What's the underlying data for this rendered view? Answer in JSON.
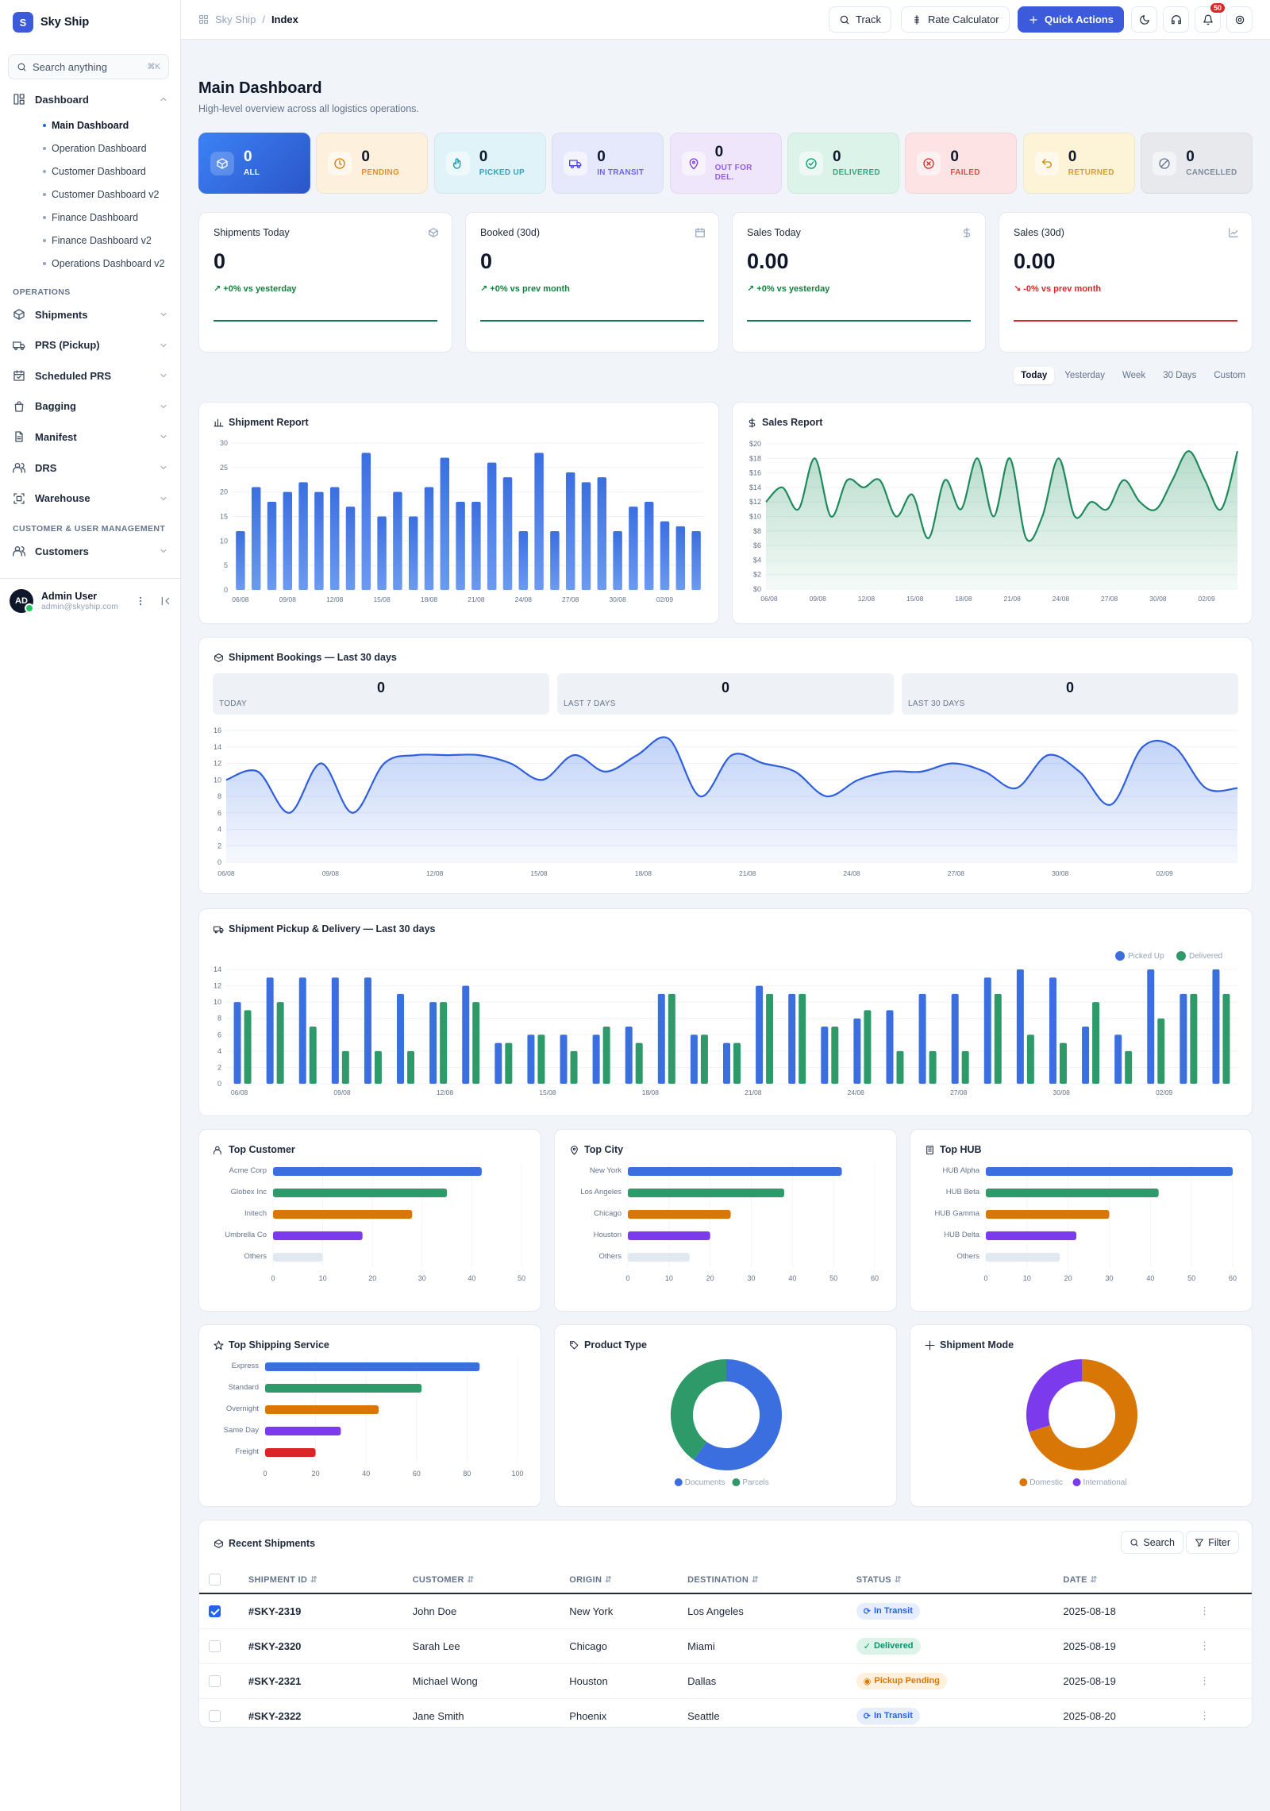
{
  "brand": {
    "logo": "S",
    "name": "Sky Ship"
  },
  "sidebar": {
    "search_placeholder": "Search anything",
    "search_kbd": "⌘K",
    "dashboard": {
      "label": "Dashboard",
      "icon": "layout-dashboard-icon",
      "subs": [
        "Main Dashboard",
        "Operation Dashboard",
        "Customer Dashboard",
        "Customer Dashboard v2",
        "Finance Dashboard",
        "Finance Dashboard v2",
        "Operations Dashboard v2"
      ]
    },
    "sections": [
      {
        "title": "OPERATIONS",
        "items": [
          {
            "label": "Shipments",
            "icon": "box-icon"
          },
          {
            "label": "PRS (Pickup)",
            "icon": "truck-icon"
          },
          {
            "label": "Scheduled PRS",
            "icon": "calendar-check-icon"
          },
          {
            "label": "Bagging",
            "icon": "shopping-bag-icon"
          },
          {
            "label": "Manifest",
            "icon": "file-text-icon"
          },
          {
            "label": "DRS",
            "icon": "users-icon"
          },
          {
            "label": "Warehouse",
            "icon": "scan-icon"
          }
        ]
      },
      {
        "title": "CUSTOMER & USER MANAGEMENT",
        "items": [
          {
            "label": "Customers",
            "icon": "users-icon"
          }
        ]
      }
    ],
    "user": {
      "initials": "AD",
      "name": "Admin User",
      "email": "admin@skyship.com"
    }
  },
  "topbar": {
    "breadcrumb": [
      "Sky Ship",
      "Index"
    ],
    "track": "Track",
    "rate": "Rate Calculator",
    "quick": "Quick Actions",
    "notif_count": "50"
  },
  "header": {
    "title": "Main Dashboard",
    "subtitle": "High-level overview across all logistics operations."
  },
  "statuses": [
    {
      "label": "ALL",
      "value": "0",
      "icon": "box-icon",
      "bg": "#3b6fe0",
      "fg": "#ffffff"
    },
    {
      "label": "PENDING",
      "value": "0",
      "icon": "clock-icon",
      "bg": "#fdf0dc",
      "fg": "#d97706"
    },
    {
      "label": "PICKED UP",
      "value": "0",
      "icon": "hand-icon",
      "bg": "#dff3f8",
      "fg": "#0891b2"
    },
    {
      "label": "IN TRANSIT",
      "value": "0",
      "icon": "truck-icon",
      "bg": "#e6e9fb",
      "fg": "#4f46e5"
    },
    {
      "label": "OUT FOR DEL.",
      "value": "0",
      "icon": "map-pin-icon",
      "bg": "#efe6fb",
      "fg": "#7c3aed"
    },
    {
      "label": "DELIVERED",
      "value": "0",
      "icon": "check-circle-icon",
      "bg": "#dcf3ea",
      "fg": "#059669"
    },
    {
      "label": "FAILED",
      "value": "0",
      "icon": "x-circle-icon",
      "bg": "#fde3e3",
      "fg": "#dc2626"
    },
    {
      "label": "RETURNED",
      "value": "0",
      "icon": "undo-icon",
      "bg": "#fdf3d6",
      "fg": "#ca8a04"
    },
    {
      "label": "CANCELLED",
      "value": "0",
      "icon": "ban-icon",
      "bg": "#e7e9ec",
      "fg": "#64748b"
    }
  ],
  "metrics": [
    {
      "title": "Shipments Today",
      "value": "0",
      "delta": "↗ +0% vs yesterday",
      "up": true,
      "icon": "box-icon"
    },
    {
      "title": "Booked (30d)",
      "value": "0",
      "delta": "↗ +0% vs prev month",
      "up": true,
      "icon": "calendar-icon"
    },
    {
      "title": "Sales Today",
      "value": "0.00",
      "delta": "↗ +0% vs yesterday",
      "up": true,
      "icon": "dollar-icon"
    },
    {
      "title": "Sales (30d)",
      "value": "0.00",
      "delta": "↘ -0% vs prev month",
      "up": false,
      "icon": "trending-icon"
    }
  ],
  "ranges": [
    "Today",
    "Yesterday",
    "Week",
    "30 Days",
    "Custom"
  ],
  "colors": {
    "blue": "#3b6fe0",
    "green": "#2e9a6a",
    "orange": "#d97706",
    "purple": "#7c3aed",
    "red": "#dc2626",
    "grey": "#e2e8f0"
  },
  "chart_data": [
    {
      "id": "shipment-report",
      "type": "bar",
      "title": "Shipment Report",
      "ylim": [
        0,
        30
      ],
      "yticks": [
        0,
        5,
        10,
        15,
        20,
        25,
        30
      ],
      "xticklabels": [
        "06/08",
        "09/08",
        "12/08",
        "15/08",
        "18/08",
        "21/08",
        "24/08",
        "27/08",
        "30/08",
        "02/09"
      ],
      "values": [
        12,
        21,
        18,
        20,
        22,
        20,
        21,
        17,
        28,
        15,
        20,
        15,
        21,
        27,
        18,
        18,
        26,
        23,
        12,
        28,
        12,
        24,
        22,
        23,
        12,
        17,
        18,
        14,
        13,
        12
      ]
    },
    {
      "id": "sales-report",
      "type": "area",
      "title": "Sales Report",
      "ylim": [
        0,
        20
      ],
      "yticks": [
        "$0",
        "$2",
        "$4",
        "$6",
        "$8",
        "$10",
        "$12",
        "$14",
        "$16",
        "$18",
        "$20"
      ],
      "xticklabels": [
        "06/08",
        "09/08",
        "12/08",
        "15/08",
        "18/08",
        "21/08",
        "24/08",
        "27/08",
        "30/08",
        "02/09"
      ],
      "values": [
        12,
        14,
        11,
        18,
        10,
        15,
        14,
        15,
        10,
        13,
        7,
        15,
        11,
        18,
        10,
        18,
        7,
        10,
        18,
        10,
        12,
        11,
        15,
        12,
        11,
        15,
        19,
        15,
        11,
        19
      ]
    },
    {
      "id": "bookings",
      "type": "area",
      "title": "Shipment Bookings — Last 30 days",
      "ylim": [
        0,
        16
      ],
      "yticks": [
        0,
        2,
        4,
        6,
        8,
        10,
        12,
        14,
        16
      ],
      "xticklabels": [
        "06/08",
        "09/08",
        "12/08",
        "15/08",
        "18/08",
        "21/08",
        "24/08",
        "27/08",
        "30/08",
        "02/09"
      ],
      "values": [
        10,
        11,
        6,
        12,
        6,
        12,
        13,
        13,
        13,
        12,
        10,
        13,
        11,
        13,
        15,
        8,
        13,
        12,
        11,
        8,
        10,
        11,
        11,
        12,
        11,
        9,
        13,
        11,
        7,
        14,
        14,
        9,
        9
      ],
      "kpis": [
        {
          "label": "TODAY",
          "value": "0"
        },
        {
          "label": "LAST 7 DAYS",
          "value": "0"
        },
        {
          "label": "LAST 30 DAYS",
          "value": "0"
        }
      ]
    },
    {
      "id": "pickup-delivery",
      "type": "bar",
      "title": "Shipment Pickup & Delivery — Last 30 days",
      "ylim": [
        0,
        14
      ],
      "yticks": [
        0,
        2,
        4,
        6,
        8,
        10,
        12,
        14
      ],
      "xticklabels": [
        "06/08",
        "09/08",
        "12/08",
        "15/08",
        "18/08",
        "21/08",
        "24/08",
        "27/08",
        "30/08",
        "02/09"
      ],
      "series": [
        {
          "name": "Picked Up",
          "values": [
            10,
            13,
            13,
            13,
            13,
            11,
            10,
            12,
            5,
            6,
            6,
            6,
            7,
            11,
            6,
            5,
            12,
            11,
            7,
            8,
            9,
            11,
            11,
            13,
            14,
            13,
            7,
            6,
            14,
            11,
            14
          ]
        },
        {
          "name": "Delivered",
          "values": [
            9,
            10,
            7,
            4,
            4,
            4,
            10,
            10,
            5,
            6,
            4,
            7,
            5,
            11,
            6,
            5,
            11,
            11,
            7,
            9,
            4,
            4,
            4,
            11,
            6,
            5,
            10,
            4,
            8,
            11,
            11
          ]
        }
      ]
    },
    {
      "id": "top-customer",
      "type": "hbar",
      "title": "Top Customer",
      "categories": [
        "Acme Corp",
        "Globex Inc",
        "Initech",
        "Umbrella Co",
        "Others"
      ],
      "values": [
        42,
        35,
        28,
        18,
        10
      ],
      "xlim": [
        0,
        50
      ],
      "xticks": [
        0,
        10,
        20,
        30,
        40,
        50
      ]
    },
    {
      "id": "top-city",
      "type": "hbar",
      "title": "Top City",
      "categories": [
        "New York",
        "Los Angeles",
        "Chicago",
        "Houston",
        "Others"
      ],
      "values": [
        52,
        38,
        25,
        20,
        15
      ],
      "xlim": [
        0,
        60
      ],
      "xticks": [
        0,
        10,
        20,
        30,
        40,
        50,
        60
      ]
    },
    {
      "id": "top-hub",
      "type": "hbar",
      "title": "Top HUB",
      "categories": [
        "HUB Alpha",
        "HUB Beta",
        "HUB Gamma",
        "HUB Delta",
        "Others"
      ],
      "values": [
        60,
        42,
        30,
        22,
        18
      ],
      "xlim": [
        0,
        60
      ],
      "xticks": [
        0,
        10,
        20,
        30,
        40,
        50,
        60
      ]
    },
    {
      "id": "top-service",
      "type": "hbar",
      "title": "Top Shipping Service",
      "categories": [
        "Express",
        "Standard",
        "Overnight",
        "Same Day",
        "Freight"
      ],
      "values": [
        85,
        62,
        45,
        30,
        20
      ],
      "xlim": [
        0,
        100
      ],
      "xticks": [
        0,
        20,
        40,
        60,
        80,
        100
      ]
    },
    {
      "id": "product-type",
      "type": "pie",
      "title": "Product Type",
      "labels": [
        "Documents",
        "Parcels"
      ],
      "values": [
        60,
        40
      ]
    },
    {
      "id": "shipment-mode",
      "type": "pie",
      "title": "Shipment Mode",
      "labels": [
        "Domestic",
        "International"
      ],
      "values": [
        70,
        30
      ]
    }
  ],
  "recent": {
    "title": "Recent Shipments",
    "search": "Search",
    "filter": "Filter",
    "columns": [
      "SHIPMENT ID",
      "CUSTOMER",
      "ORIGIN",
      "DESTINATION",
      "STATUS",
      "DATE"
    ],
    "rows": [
      {
        "id": "#SKY-2319",
        "customer": "John Doe",
        "origin": "New York",
        "dest": "Los Angeles",
        "status": "In Transit",
        "date": "2025-08-18",
        "checked": true
      },
      {
        "id": "#SKY-2320",
        "customer": "Sarah Lee",
        "origin": "Chicago",
        "dest": "Miami",
        "status": "Delivered",
        "date": "2025-08-19",
        "checked": false
      },
      {
        "id": "#SKY-2321",
        "customer": "Michael Wong",
        "origin": "Houston",
        "dest": "Dallas",
        "status": "Pickup Pending",
        "date": "2025-08-19",
        "checked": false
      },
      {
        "id": "#SKY-2322",
        "customer": "Jane Smith",
        "origin": "Phoenix",
        "dest": "Seattle",
        "status": "In Transit",
        "date": "2025-08-20",
        "checked": false
      }
    ]
  }
}
